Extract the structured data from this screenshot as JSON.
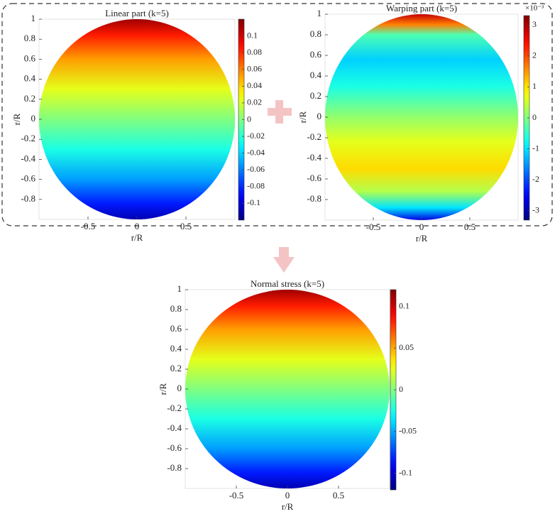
{
  "chart_data": [
    {
      "type": "disk-map",
      "title": "Linear part (k=5)",
      "xlabel": "r/R",
      "ylabel": "r/R",
      "xlim": [
        -1,
        1
      ],
      "ylim": [
        -1,
        1
      ],
      "xticks": [
        -0.5,
        0,
        0.5
      ],
      "yticks": [
        -0.8,
        -0.6,
        -0.4,
        -0.2,
        0,
        0.2,
        0.4,
        0.6,
        0.8,
        1
      ],
      "field": "linear",
      "colormap": "jet",
      "clim": [
        -0.12,
        0.12
      ],
      "cticks": [
        -0.1,
        -0.08,
        -0.06,
        -0.04,
        -0.02,
        0,
        0.02,
        0.04,
        0.06,
        0.08,
        0.1
      ]
    },
    {
      "type": "disk-map",
      "title": "Warping part (k=5)",
      "xlabel": "r/R",
      "ylabel": "r/R",
      "xlim": [
        -1,
        1
      ],
      "ylim": [
        -1,
        1
      ],
      "xticks": [
        -0.5,
        0,
        0.5
      ],
      "yticks": [
        -0.8,
        -0.6,
        -0.4,
        -0.2,
        0,
        0.2,
        0.4,
        0.6,
        0.8,
        1
      ],
      "field": "warping",
      "colormap": "jet",
      "clim": [
        -3.3,
        3.3
      ],
      "cticks": [
        -3,
        -2,
        -1,
        0,
        1,
        2,
        3
      ],
      "colorbar_multiplier": "×10⁻³"
    },
    {
      "type": "disk-map",
      "title": "Normal stress (k=5)",
      "xlabel": "r/R",
      "ylabel": "r/R",
      "xlim": [
        -1,
        1
      ],
      "ylim": [
        -1,
        1
      ],
      "xticks": [
        -0.5,
        0,
        0.5
      ],
      "yticks": [
        -0.8,
        -0.6,
        -0.4,
        -0.2,
        0,
        0.2,
        0.4,
        0.6,
        0.8,
        1
      ],
      "field": "linear",
      "colormap": "jet",
      "clim": [
        -0.12,
        0.12
      ],
      "cticks": [
        -0.1,
        -0.05,
        0,
        0.05,
        0.1
      ]
    }
  ]
}
